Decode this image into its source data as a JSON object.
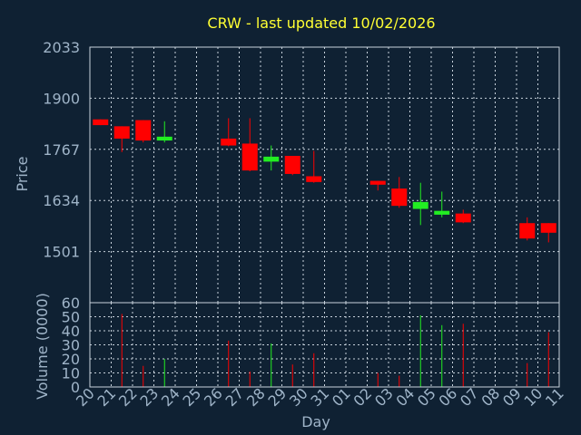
{
  "chart_data": [
    {
      "type": "candlestick",
      "title": "CRW - last updated 10/02/2026",
      "ylabel": "Price",
      "ylim": [
        1368,
        2033
      ],
      "yticks": [
        "2033",
        "1900",
        "1767",
        "1634",
        "1501"
      ],
      "grid": true,
      "colors": {
        "up": "#22ee22",
        "down": "#ff0000"
      },
      "candles": [
        {
          "day": "20",
          "open": 1845,
          "high": 1845,
          "low": 1830,
          "close": 1830
        },
        {
          "day": "21",
          "open": 1827,
          "high": 1827,
          "low": 1760,
          "close": 1795
        },
        {
          "day": "22",
          "open": 1843,
          "high": 1843,
          "low": 1785,
          "close": 1790
        },
        {
          "day": "23",
          "open": 1790,
          "high": 1840,
          "low": 1785,
          "close": 1800
        },
        {
          "day": "26",
          "open": 1795,
          "high": 1848,
          "low": 1775,
          "close": 1777
        },
        {
          "day": "27",
          "open": 1782,
          "high": 1848,
          "low": 1710,
          "close": 1712
        },
        {
          "day": "28",
          "open": 1735,
          "high": 1777,
          "low": 1712,
          "close": 1748
        },
        {
          "day": "29",
          "open": 1750,
          "high": 1750,
          "low": 1700,
          "close": 1703
        },
        {
          "day": "30",
          "open": 1697,
          "high": 1763,
          "low": 1680,
          "close": 1682
        },
        {
          "day": "02",
          "open": 1685,
          "high": 1685,
          "low": 1660,
          "close": 1675
        },
        {
          "day": "03",
          "open": 1665,
          "high": 1695,
          "low": 1615,
          "close": 1620
        },
        {
          "day": "04",
          "open": 1612,
          "high": 1680,
          "low": 1570,
          "close": 1630
        },
        {
          "day": "05",
          "open": 1597,
          "high": 1657,
          "low": 1590,
          "close": 1607
        },
        {
          "day": "06",
          "open": 1600,
          "high": 1610,
          "low": 1575,
          "close": 1577
        },
        {
          "day": "09",
          "open": 1575,
          "high": 1590,
          "low": 1530,
          "close": 1535
        },
        {
          "day": "10",
          "open": 1575,
          "high": 1575,
          "low": 1525,
          "close": 1550
        }
      ]
    },
    {
      "type": "bar",
      "ylabel": "Volume (0000)",
      "xlabel": "Day",
      "ylim": [
        0,
        60
      ],
      "yticks": [
        "60",
        "50",
        "40",
        "30",
        "20",
        "10",
        "0"
      ],
      "categories": [
        "20",
        "21",
        "22",
        "23",
        "24",
        "25",
        "26",
        "27",
        "28",
        "29",
        "30",
        "31",
        "01",
        "02",
        "03",
        "04",
        "05",
        "06",
        "07",
        "08",
        "09",
        "10",
        "11"
      ],
      "bars": [
        {
          "day": "21",
          "value": 52,
          "direction": "down"
        },
        {
          "day": "22",
          "value": 15,
          "direction": "down"
        },
        {
          "day": "23",
          "value": 20,
          "direction": "up"
        },
        {
          "day": "26",
          "value": 33,
          "direction": "down"
        },
        {
          "day": "27",
          "value": 11,
          "direction": "down"
        },
        {
          "day": "28",
          "value": 31,
          "direction": "up"
        },
        {
          "day": "29",
          "value": 16,
          "direction": "down"
        },
        {
          "day": "30",
          "value": 24,
          "direction": "down"
        },
        {
          "day": "02",
          "value": 10,
          "direction": "down"
        },
        {
          "day": "03",
          "value": 8,
          "direction": "down"
        },
        {
          "day": "04",
          "value": 51,
          "direction": "up"
        },
        {
          "day": "05",
          "value": 44,
          "direction": "up"
        },
        {
          "day": "06",
          "value": 45,
          "direction": "down"
        },
        {
          "day": "09",
          "value": 17,
          "direction": "down"
        },
        {
          "day": "10",
          "value": 39,
          "direction": "down"
        }
      ]
    }
  ]
}
